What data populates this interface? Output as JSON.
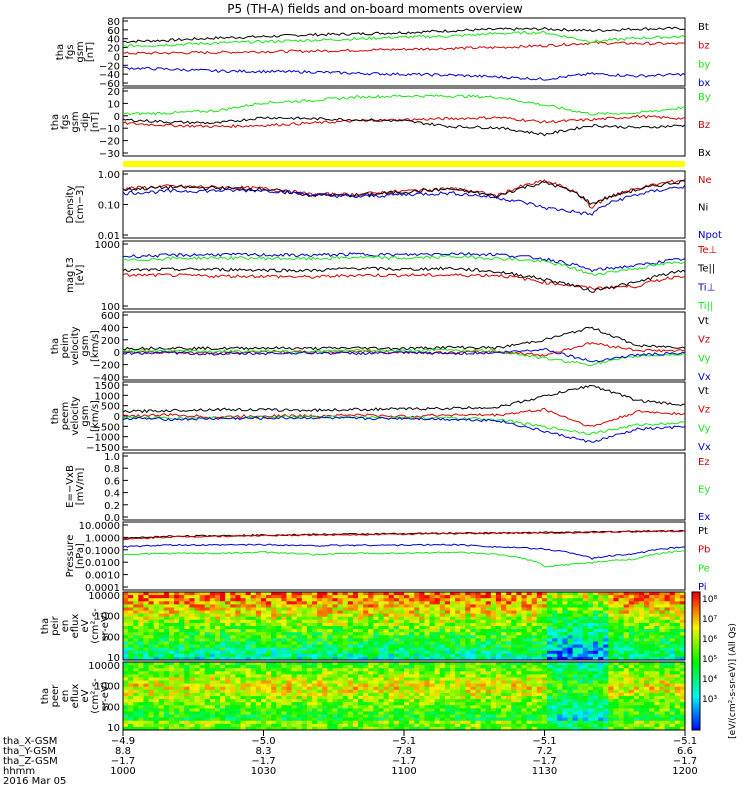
{
  "title": "P5 (TH-A) fields and on-board moments overview",
  "colors": {
    "black": "#000000",
    "red": "#d40000",
    "green": "#19e619",
    "blue": "#0000cc",
    "yellow": "#ffff00"
  },
  "chart_data": [
    {
      "id": "p1",
      "type": "line",
      "ylabel": [
        "tha",
        "fgs",
        "gsm",
        "[nT]"
      ],
      "yticks": [
        "80",
        "60",
        "40",
        "20",
        "0",
        "−20",
        "−40",
        "−60"
      ],
      "ylim": [
        -60,
        90
      ],
      "series": [
        {
          "name": "Bt",
          "color": "black",
          "values": [
            38,
            41,
            46,
            49,
            53,
            55,
            58,
            62,
            65,
            66,
            62,
            66,
            67
          ]
        },
        {
          "name": "bz",
          "color": "red",
          "values": [
            12,
            13,
            14,
            16,
            17,
            19,
            21,
            23,
            25,
            29,
            35,
            34,
            33
          ]
        },
        {
          "name": "by",
          "color": "green",
          "values": [
            28,
            31,
            35,
            38,
            41,
            44,
            48,
            50,
            56,
            58,
            38,
            46,
            49
          ]
        },
        {
          "name": "bx",
          "color": "blue",
          "values": [
            -20,
            -23,
            -27,
            -28,
            -29,
            -32,
            -34,
            -36,
            -40,
            -45,
            -33,
            -38,
            -34
          ]
        }
      ]
    },
    {
      "id": "p2",
      "type": "line",
      "ylabel": [
        "tha",
        "fgs",
        "gsm",
        "-dip",
        "[nT]"
      ],
      "yticks": [
        "20",
        "10",
        "0",
        "−10",
        "−20",
        "−30"
      ],
      "ylim": [
        -35,
        25
      ],
      "series": [
        {
          "name": "By",
          "color": "green",
          "values": [
            2,
            3,
            5,
            12,
            14,
            17,
            18,
            18,
            17,
            10,
            2,
            3,
            8
          ]
        },
        {
          "name": "Bz",
          "color": "red",
          "values": [
            -6,
            -8,
            -9,
            -8,
            -6,
            -4,
            -3,
            -2,
            -1,
            -5,
            -3,
            0,
            -2
          ]
        },
        {
          "name": "Bx",
          "color": "black",
          "values": [
            -3,
            -5,
            -6,
            -1,
            -2,
            -3,
            -4,
            -9,
            -10,
            -16,
            -8,
            -10,
            -8
          ]
        }
      ]
    },
    {
      "id": "p3",
      "type": "line",
      "ylabel": [
        "Density",
        "[cm−3]"
      ],
      "yticks": [
        "1.00",
        "0.10",
        "0.01"
      ],
      "ylim": [
        0.01,
        1
      ],
      "log": true,
      "series": [
        {
          "name": "Ne",
          "color": "red",
          "values": [
            0.3,
            0.35,
            0.33,
            0.3,
            0.2,
            0.2,
            0.25,
            0.3,
            0.18,
            0.5,
            0.08,
            0.3,
            0.55
          ]
        },
        {
          "name": "Ni",
          "color": "black",
          "values": [
            0.28,
            0.33,
            0.31,
            0.29,
            0.19,
            0.19,
            0.24,
            0.29,
            0.17,
            0.45,
            0.1,
            0.28,
            0.5
          ]
        },
        {
          "name": "Npot",
          "color": "blue",
          "values": [
            0.22,
            0.25,
            0.26,
            0.27,
            0.2,
            0.17,
            0.2,
            0.22,
            0.16,
            0.08,
            0.05,
            0.2,
            0.35
          ]
        }
      ]
    },
    {
      "id": "p4",
      "type": "line",
      "ylabel": [
        "mag t3",
        "[eV]"
      ],
      "yticks": [
        "1000",
        "100"
      ],
      "ylim": [
        50,
        10000
      ],
      "log": true,
      "series": [
        {
          "name": "Te⊥",
          "color": "red",
          "values": [
            700,
            700,
            650,
            650,
            600,
            700,
            700,
            700,
            700,
            400,
            250,
            300,
            700
          ]
        },
        {
          "name": "Te||",
          "color": "black",
          "values": [
            1000,
            1100,
            1100,
            1050,
            1000,
            1200,
            1100,
            1200,
            900,
            500,
            200,
            400,
            1000
          ]
        },
        {
          "name": "Ti⊥",
          "color": "blue",
          "values": [
            3000,
            3300,
            3500,
            3400,
            3300,
            3600,
            3400,
            3800,
            3500,
            2500,
            1000,
            1500,
            2500
          ]
        },
        {
          "name": "Ti||",
          "color": "green",
          "values": [
            2200,
            2600,
            2700,
            2600,
            2500,
            2800,
            2600,
            3000,
            2600,
            2000,
            700,
            1200,
            2000
          ]
        }
      ]
    },
    {
      "id": "p5",
      "type": "line",
      "ylabel": [
        "tha",
        "peim",
        "velocity",
        "gsm",
        "[km/s]"
      ],
      "yticks": [
        "600",
        "400",
        "200",
        "0",
        "−200",
        "−400"
      ],
      "ylim": [
        -450,
        650
      ],
      "series": [
        {
          "name": "Vt",
          "color": "black",
          "values": [
            60,
            70,
            60,
            70,
            60,
            70,
            60,
            80,
            70,
            200,
            400,
            100,
            80
          ]
        },
        {
          "name": "Vz",
          "color": "red",
          "values": [
            10,
            0,
            -20,
            10,
            0,
            10,
            0,
            -10,
            10,
            -50,
            150,
            30,
            20
          ]
        },
        {
          "name": "Vy",
          "color": "green",
          "values": [
            20,
            30,
            10,
            20,
            10,
            30,
            20,
            40,
            20,
            -100,
            -200,
            -60,
            -30
          ]
        },
        {
          "name": "Vx",
          "color": "blue",
          "values": [
            -20,
            -10,
            -30,
            -20,
            -10,
            -20,
            -10,
            -20,
            -10,
            50,
            -150,
            -40,
            -20
          ]
        }
      ]
    },
    {
      "id": "p6",
      "type": "line",
      "ylabel": [
        "tha",
        "peem",
        "velocity",
        "gsm",
        "[km/s]"
      ],
      "yticks": [
        "1500",
        "1000",
        "500",
        "0",
        "−500",
        "−1000",
        "−1500"
      ],
      "ylim": [
        -1550,
        1550
      ],
      "series": [
        {
          "name": "Vt",
          "color": "black",
          "values": [
            200,
            250,
            300,
            280,
            260,
            300,
            320,
            350,
            400,
            900,
            1400,
            700,
            500
          ]
        },
        {
          "name": "Vz",
          "color": "red",
          "values": [
            0,
            50,
            -50,
            20,
            0,
            50,
            -20,
            60,
            40,
            300,
            -500,
            200,
            100
          ]
        },
        {
          "name": "Vy",
          "color": "green",
          "values": [
            -50,
            -100,
            -80,
            -60,
            -40,
            -60,
            -80,
            -100,
            -150,
            -500,
            -800,
            -400,
            -300
          ]
        },
        {
          "name": "Vx",
          "color": "blue",
          "values": [
            -100,
            -150,
            -120,
            -100,
            -80,
            -120,
            -100,
            -150,
            -200,
            -700,
            -1200,
            -600,
            -500
          ]
        }
      ]
    },
    {
      "id": "p7",
      "type": "line",
      "ylabel": [
        "E=−VxB",
        "[mV/m]"
      ],
      "yticks": [
        "1.0",
        "0.8",
        "0.6",
        "0.4",
        "0.2",
        "0.0"
      ],
      "ylim": [
        0,
        1
      ],
      "series": [
        {
          "name": "Ez",
          "color": "red",
          "values": []
        },
        {
          "name": "Ey",
          "color": "green",
          "values": []
        },
        {
          "name": "Ex",
          "color": "blue",
          "values": []
        }
      ]
    },
    {
      "id": "p8",
      "type": "line",
      "ylabel": [
        "Pressure",
        "[nPa]"
      ],
      "yticks": [
        "10.0000",
        "1.0000",
        "0.1000",
        "0.0100",
        "0.0010",
        "0.0001"
      ],
      "ylim": [
        0.0001,
        10
      ],
      "log": true,
      "series": [
        {
          "name": "Pt",
          "color": "black",
          "values": [
            0.6,
            0.9,
            1.0,
            1.1,
            1.2,
            1.3,
            1.4,
            1.5,
            1.6,
            1.7,
            1.8,
            2.1,
            2.3
          ]
        },
        {
          "name": "Pb",
          "color": "red",
          "values": [
            0.5,
            0.8,
            0.9,
            1.0,
            1.1,
            1.2,
            1.3,
            1.4,
            1.5,
            1.6,
            1.7,
            2.0,
            2.2
          ]
        },
        {
          "name": "Pe",
          "color": "green",
          "values": [
            0.04,
            0.05,
            0.05,
            0.06,
            0.04,
            0.05,
            0.05,
            0.06,
            0.04,
            0.005,
            0.01,
            0.02,
            0.08
          ]
        },
        {
          "name": "Pi",
          "color": "blue",
          "values": [
            0.15,
            0.2,
            0.2,
            0.22,
            0.18,
            0.2,
            0.2,
            0.22,
            0.15,
            0.1,
            0.02,
            0.05,
            0.15
          ]
        }
      ]
    },
    {
      "id": "p9",
      "type": "heatmap",
      "ylabel": [
        "tha",
        "peir",
        "en",
        "eflux",
        "eV",
        "(cm²-s-",
        "sr-eV)"
      ],
      "yticks": [
        "10000",
        "1000",
        "100",
        "10"
      ]
    },
    {
      "id": "p10",
      "type": "heatmap",
      "ylabel": [
        "tha",
        "peer",
        "en",
        "eflux",
        "eV",
        "(cm²-s-",
        "sr-eV)"
      ],
      "yticks": [
        "10000",
        "1000",
        "100",
        "10"
      ]
    }
  ],
  "colorbar": {
    "label": "[eV/(cm²-s-sr-eV)] (All Qs)",
    "ticks": [
      "10⁸",
      "10⁷",
      "10⁶",
      "10⁵",
      "10⁴",
      "10³"
    ]
  },
  "xaxis": {
    "ticks": [
      "1000",
      "1030",
      "1100",
      "1130",
      "1200"
    ],
    "rows": [
      {
        "label": "tha_X-GSM",
        "values": [
          "−4.9",
          "−5.0",
          "−5.1",
          "−5.1",
          "−5.1"
        ]
      },
      {
        "label": "tha_Y-GSM",
        "values": [
          "8.8",
          "8.3",
          "7.8",
          "7.2",
          "6.6"
        ]
      },
      {
        "label": "tha_Z-GSM",
        "values": [
          "−1.7",
          "−1.7",
          "−1.7",
          "−1.7",
          "−1.7"
        ]
      },
      {
        "label": "hhmm",
        "values": [
          "1000",
          "1030",
          "1100",
          "1130",
          "1200"
        ]
      }
    ],
    "date": "2016 Mar 05"
  }
}
